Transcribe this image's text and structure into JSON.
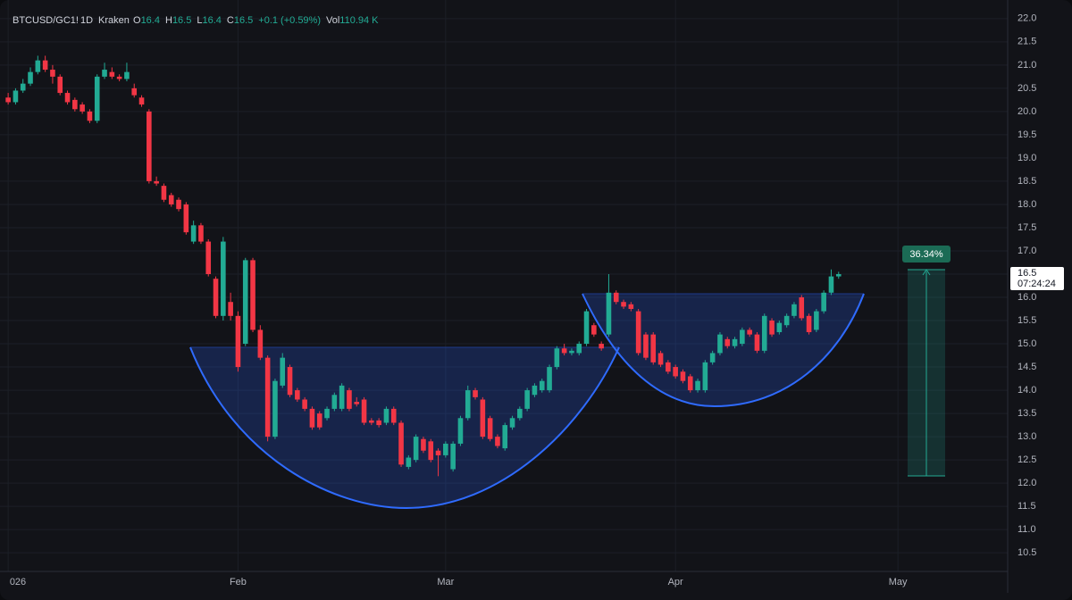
{
  "header": {
    "symbol": "BTCUSD/GC1!",
    "interval": "1D",
    "exchange": "Kraken",
    "ohlc": [
      {
        "label": "O",
        "value": 16.4
      },
      {
        "label": "H",
        "value": 16.5
      },
      {
        "label": "L",
        "value": 16.4
      },
      {
        "label": "C",
        "value": 16.5
      }
    ],
    "change": "+0.1 (+0.59%)",
    "volume_label": "Vol",
    "volume": "110.94 K"
  },
  "chart_data": {
    "type": "candlestick",
    "up_color": "#22ab94",
    "down_color": "#f23645",
    "grid": true,
    "xlim": [
      -1.1,
      134.8
    ],
    "ylim": [
      10.1,
      22.4
    ],
    "xticks": [
      {
        "value": 0,
        "label": "026"
      },
      {
        "value": 31,
        "label": "Feb"
      },
      {
        "value": 59,
        "label": "Mar"
      },
      {
        "value": 90,
        "label": "Apr"
      },
      {
        "value": 120,
        "label": "May"
      }
    ],
    "yticks": [
      {
        "value": 22,
        "label": "22.0"
      },
      21.5,
      {
        "value": 21,
        "label": "21.0"
      },
      20.5,
      {
        "value": 20,
        "label": "20.0"
      },
      19.5,
      {
        "value": 19,
        "label": "19.0"
      },
      18.5,
      {
        "value": 18,
        "label": "18.0"
      },
      17.5,
      {
        "value": 17,
        "label": "17.0"
      },
      16.5,
      {
        "value": 16,
        "label": "16.0"
      },
      15.5,
      {
        "value": 15,
        "label": "15.0"
      },
      14.5,
      {
        "value": 14,
        "label": "14.0"
      },
      13.5,
      {
        "value": 13,
        "label": "13.0"
      },
      12.5,
      {
        "value": 12,
        "label": "12.0"
      },
      11.5,
      {
        "value": 11,
        "label": "11.0"
      },
      10.5
    ],
    "last_price": 16.5,
    "countdown": "07:24:24",
    "measure_label": "36.34%",
    "open": [
      20.3,
      20.2,
      20.45,
      20.6,
      20.85,
      21.1,
      20.9,
      20.75,
      20.4,
      20.25,
      20.15,
      20.0,
      19.8,
      20.75,
      20.85,
      20.75,
      20.7,
      20.5,
      20.3,
      20.0,
      18.5,
      18.4,
      18.2,
      18.1,
      18.0,
      17.2,
      17.55,
      17.2,
      16.4,
      15.6,
      15.9,
      15.6,
      15.0,
      16.8,
      15.3,
      14.7,
      13.0,
      14.1,
      14.5,
      14.0,
      13.8,
      13.6,
      13.5,
      13.4,
      13.6,
      13.6,
      14.0,
      13.75,
      13.8,
      13.35,
      13.35,
      13.3,
      13.6,
      13.3,
      12.35,
      12.5,
      12.95,
      12.9,
      12.7,
      12.6,
      12.3,
      12.85,
      13.4,
      14.0,
      13.8,
      13.4,
      13.0,
      12.75,
      13.2,
      13.4,
      13.6,
      13.9,
      14.0,
      14.0,
      14.5,
      14.9,
      14.8,
      14.8,
      15.0,
      15.4,
      15.0,
      15.2,
      16.1,
      15.9,
      15.85,
      15.7,
      15.2,
      15.2,
      14.8,
      14.6,
      14.5,
      14.4,
      14.3,
      14.0,
      14.0,
      14.6,
      14.8,
      15.1,
      14.95,
      15.0,
      15.3,
      15.2,
      14.85,
      15.5,
      15.25,
      15.4,
      15.6,
      16.0,
      15.6,
      15.3,
      15.7,
      16.1,
      16.45
    ],
    "high": [
      20.4,
      20.5,
      20.7,
      20.95,
      21.2,
      21.2,
      21.0,
      20.8,
      20.45,
      20.3,
      20.2,
      20.05,
      20.8,
      21.05,
      20.95,
      20.8,
      21.05,
      20.6,
      20.35,
      20.05,
      18.6,
      18.45,
      18.25,
      18.15,
      18.05,
      17.65,
      17.6,
      17.25,
      16.45,
      17.3,
      16.1,
      15.7,
      16.85,
      16.85,
      15.4,
      14.75,
      14.25,
      14.8,
      14.55,
      14.05,
      13.85,
      13.65,
      13.55,
      13.65,
      13.95,
      14.15,
      14.05,
      13.85,
      13.85,
      13.4,
      13.4,
      13.65,
      13.65,
      13.35,
      12.6,
      13.05,
      13.0,
      12.95,
      12.75,
      12.9,
      12.9,
      13.45,
      14.1,
      14.05,
      13.85,
      13.45,
      13.05,
      13.3,
      13.45,
      13.65,
      14.05,
      14.15,
      14.25,
      14.55,
      14.95,
      15.0,
      14.9,
      15.05,
      15.75,
      15.45,
      15.05,
      16.5,
      16.15,
      15.95,
      15.9,
      15.75,
      15.25,
      15.25,
      14.85,
      14.65,
      14.55,
      14.45,
      14.35,
      14.25,
      14.65,
      14.85,
      15.25,
      15.15,
      15.15,
      15.35,
      15.35,
      15.25,
      15.65,
      15.55,
      15.5,
      15.65,
      15.9,
      16.05,
      15.65,
      15.75,
      16.15,
      16.6,
      16.55
    ],
    "low": [
      20.15,
      20.15,
      20.4,
      20.55,
      20.8,
      20.85,
      20.6,
      20.35,
      20.15,
      20.0,
      19.95,
      19.75,
      19.75,
      20.7,
      20.7,
      20.65,
      20.65,
      20.3,
      20.1,
      18.45,
      18.4,
      18.05,
      17.95,
      17.85,
      17.35,
      17.15,
      17.15,
      16.45,
      15.55,
      15.5,
      15.5,
      14.4,
      14.95,
      15.25,
      14.65,
      12.9,
      12.95,
      14.05,
      13.85,
      13.75,
      13.55,
      13.15,
      13.15,
      13.35,
      13.55,
      13.55,
      13.55,
      13.65,
      13.25,
      13.25,
      13.2,
      13.25,
      13.25,
      12.35,
      12.3,
      12.45,
      12.65,
      12.45,
      12.15,
      12.55,
      12.25,
      12.8,
      13.35,
      13.8,
      12.95,
      12.9,
      12.75,
      12.7,
      13.15,
      13.35,
      13.55,
      13.85,
      13.95,
      13.95,
      14.45,
      14.75,
      14.75,
      14.75,
      14.95,
      15.15,
      14.85,
      15.15,
      15.85,
      15.75,
      15.7,
      14.75,
      14.65,
      14.55,
      14.5,
      14.35,
      14.25,
      14.15,
      13.95,
      13.95,
      13.95,
      14.55,
      14.75,
      14.9,
      14.9,
      14.95,
      15.15,
      14.8,
      14.8,
      15.15,
      15.2,
      15.35,
      15.55,
      15.5,
      15.2,
      15.25,
      15.65,
      16.05,
      16.4
    ],
    "close": [
      20.2,
      20.45,
      20.6,
      20.85,
      21.1,
      20.9,
      20.75,
      20.4,
      20.2,
      20.05,
      20.0,
      19.8,
      20.75,
      20.9,
      20.75,
      20.7,
      20.85,
      20.35,
      20.15,
      18.5,
      18.45,
      18.1,
      18.0,
      17.9,
      17.4,
      17.55,
      17.2,
      16.5,
      15.6,
      17.2,
      15.6,
      14.5,
      16.8,
      15.3,
      14.7,
      13.0,
      14.2,
      14.7,
      13.9,
      13.8,
      13.6,
      13.2,
      13.2,
      13.6,
      13.9,
      14.1,
      13.6,
      13.7,
      13.3,
      13.3,
      13.25,
      13.6,
      13.3,
      12.4,
      12.55,
      13.0,
      12.7,
      12.5,
      12.6,
      12.85,
      12.85,
      13.4,
      14.0,
      13.85,
      13.0,
      12.95,
      12.8,
      13.25,
      13.4,
      13.6,
      14.0,
      14.1,
      14.2,
      14.5,
      14.9,
      14.8,
      14.85,
      15.0,
      15.7,
      15.2,
      14.9,
      16.1,
      15.9,
      15.8,
      15.75,
      14.8,
      14.7,
      14.6,
      14.55,
      14.4,
      14.3,
      14.2,
      14.0,
      14.2,
      14.6,
      14.8,
      15.2,
      14.95,
      15.1,
      15.3,
      15.2,
      14.85,
      15.6,
      15.2,
      15.45,
      15.6,
      15.85,
      15.55,
      15.25,
      15.7,
      16.1,
      16.45,
      16.5
    ]
  }
}
